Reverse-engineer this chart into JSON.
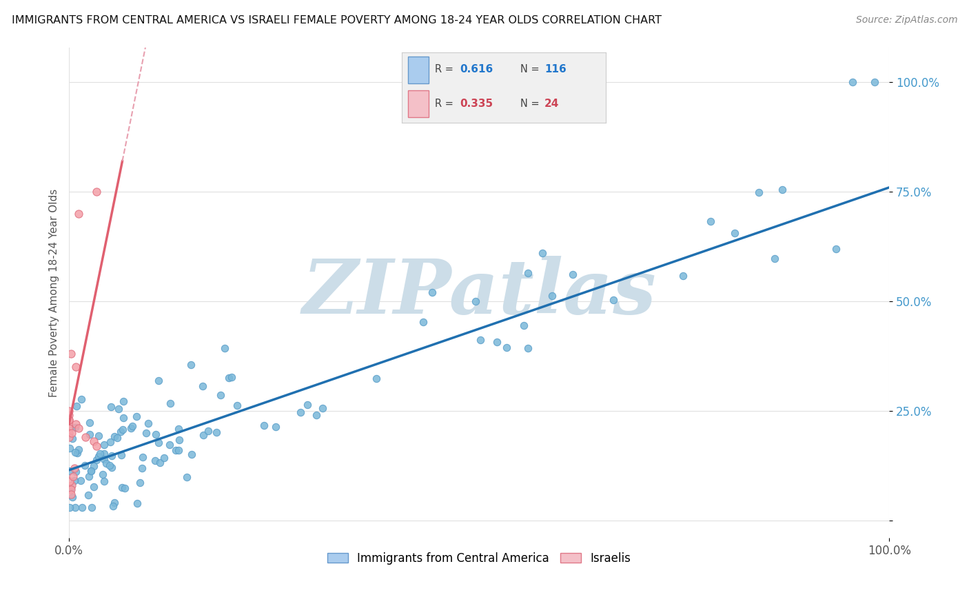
{
  "title": "IMMIGRANTS FROM CENTRAL AMERICA VS ISRAELI FEMALE POVERTY AMONG 18-24 YEAR OLDS CORRELATION CHART",
  "source": "Source: ZipAtlas.com",
  "ylabel": "Female Poverty Among 18-24 Year Olds",
  "xlim": [
    0,
    1.0
  ],
  "ylim": [
    -0.04,
    1.08
  ],
  "blue_R": 0.616,
  "blue_N": 116,
  "pink_R": 0.335,
  "pink_N": 24,
  "blue_color": "#7ab8d9",
  "blue_edge_color": "#5a9ec9",
  "pink_color": "#f4a0a8",
  "pink_edge_color": "#e07080",
  "blue_line_color": "#2070b0",
  "pink_line_color": "#e06070",
  "pink_dash_color": "#e8a0b0",
  "watermark": "ZIPatlas",
  "watermark_color": "#ccdde8",
  "legend_label_blue": "Immigrants from Central America",
  "legend_label_pink": "Israelis",
  "legend_bg_color": "#f0f0f0",
  "legend_border_color": "#cccccc",
  "blue_val_color": "#2277cc",
  "pink_val_color": "#cc4455",
  "grid_color": "#e0e0e0",
  "tick_color": "#4499cc",
  "ytick_positions": [
    0.0,
    0.25,
    0.5,
    0.75,
    1.0
  ],
  "ytick_labels": [
    "",
    "25.0%",
    "50.0%",
    "75.0%",
    "100.0%"
  ],
  "xtick_positions": [
    0.0,
    1.0
  ],
  "xtick_labels": [
    "0.0%",
    "100.0%"
  ],
  "blue_trend_x0": 0.0,
  "blue_trend_y0": 0.115,
  "blue_trend_x1": 1.0,
  "blue_trend_y1": 0.76,
  "pink_trend_x0": 0.0,
  "pink_trend_y0": 0.22,
  "pink_trend_x1": 0.065,
  "pink_trend_y1": 0.82
}
